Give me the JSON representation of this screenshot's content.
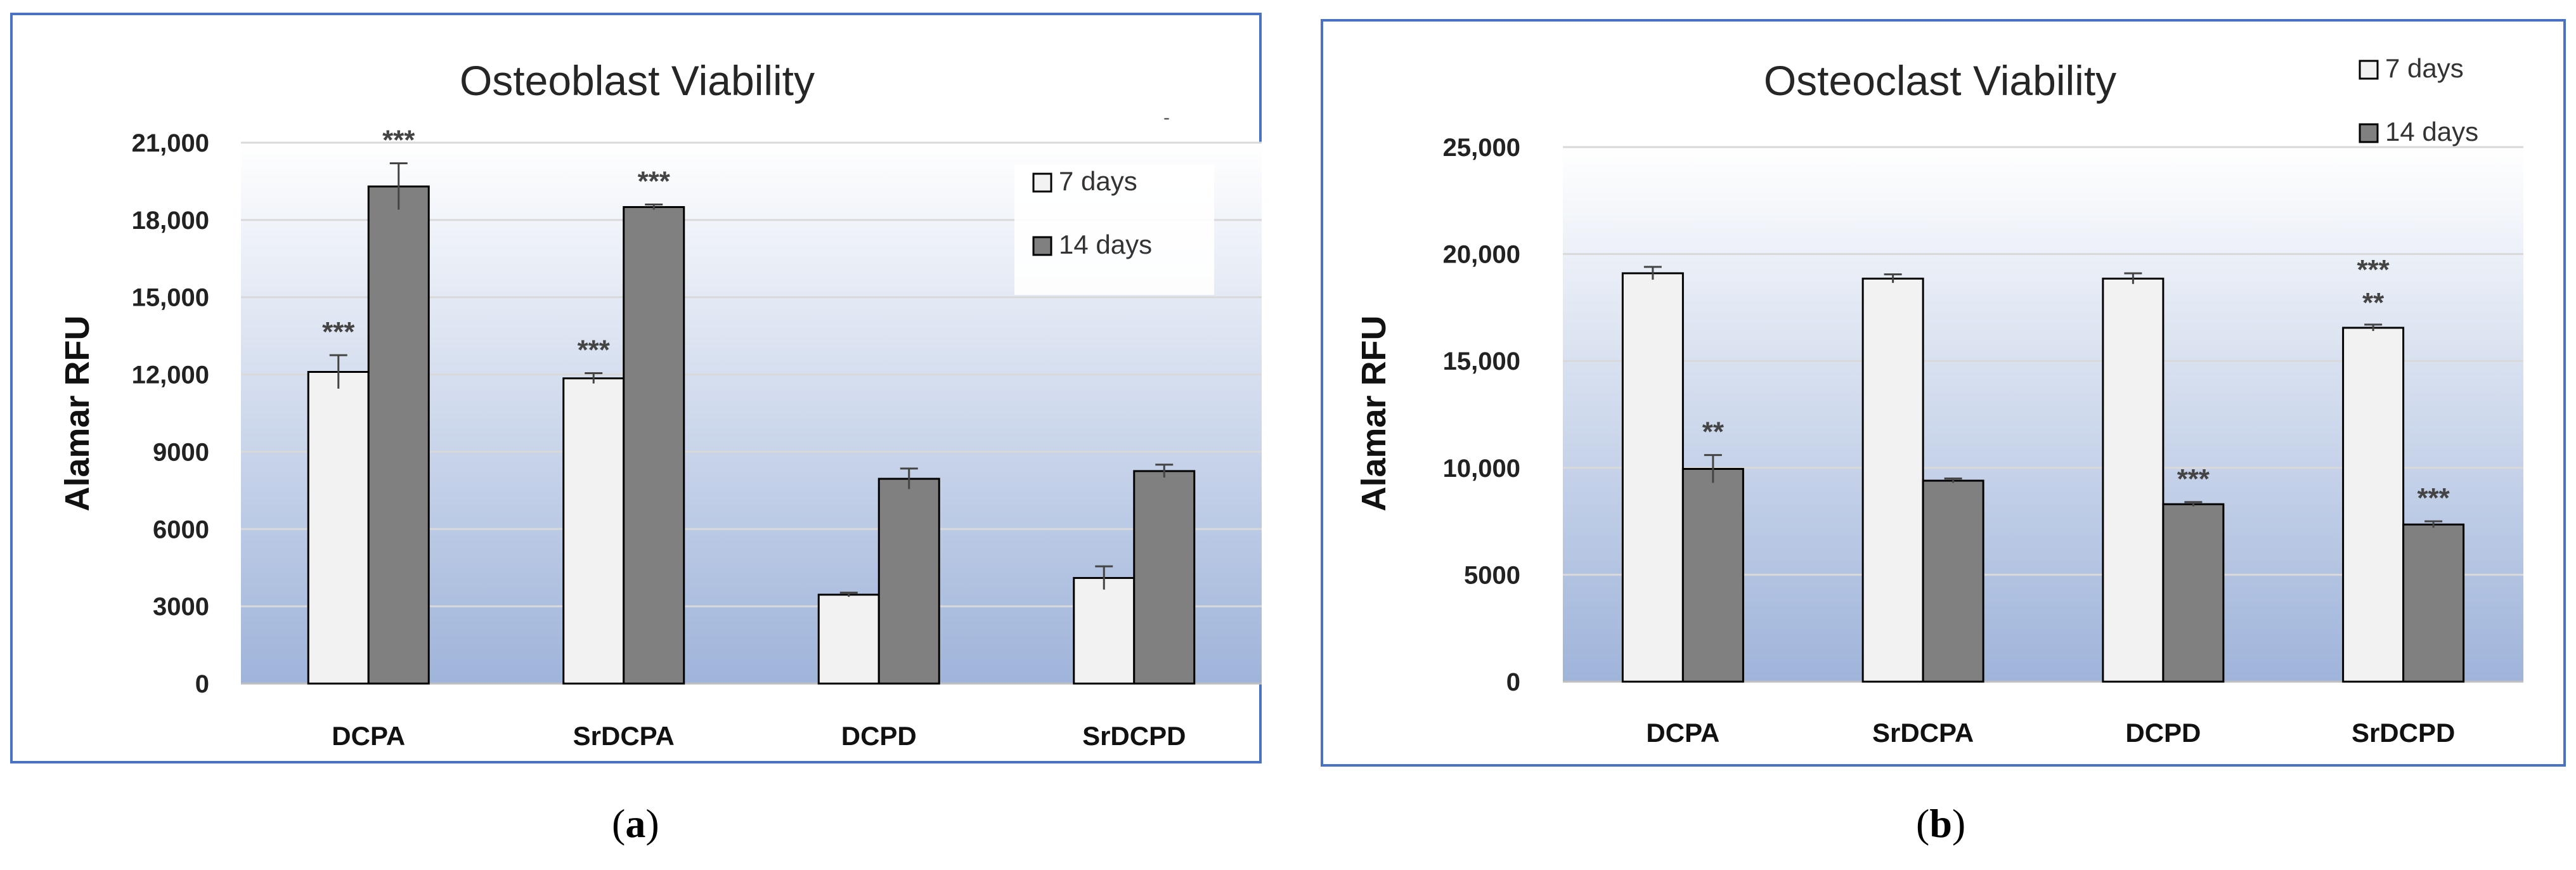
{
  "panels": [
    {
      "label_open": "(",
      "label_letter": "a",
      "label_close": ")"
    },
    {
      "label_open": "(",
      "label_letter": "b",
      "label_close": ")"
    }
  ],
  "colors": {
    "frame": "#4a72c4",
    "bar_7": "#f2f2f2",
    "bar_14": "#808080",
    "grid": "#d9d9d9",
    "plot_top": "#ffffff",
    "plot_bottom": "#9fb4da"
  },
  "chart_data": [
    {
      "type": "bar",
      "title": "Osteoblast Viability",
      "xlabel": "",
      "ylabel": "Alamar RFU",
      "ylim": [
        0,
        21000
      ],
      "yticks": [
        0,
        3000,
        6000,
        9000,
        12000,
        15000,
        18000,
        21000
      ],
      "ytick_labels": [
        "0",
        "3000",
        "6000",
        "9000",
        "12,000",
        "15,000",
        "18,000",
        "21,000"
      ],
      "grid": true,
      "legend_position": "top-right",
      "categories": [
        "DCPA",
        "SrDCPA",
        "DCPD",
        "SrDCPD"
      ],
      "series": [
        {
          "name": "7 days",
          "values": [
            12100,
            11850,
            3450,
            4100
          ],
          "errors": [
            650,
            200,
            80,
            450
          ],
          "annotations": [
            "***",
            "***",
            "",
            ""
          ]
        },
        {
          "name": "14 days",
          "values": [
            19300,
            18500,
            7950,
            8250
          ],
          "errors": [
            900,
            100,
            400,
            250
          ],
          "annotations": [
            "***",
            "***",
            "",
            ""
          ]
        }
      ],
      "stray_mark": "-"
    },
    {
      "type": "bar",
      "title": "Osteoclast Viability",
      "xlabel": "",
      "ylabel": "Alamar RFU",
      "ylim": [
        0,
        25000
      ],
      "yticks": [
        0,
        5000,
        10000,
        15000,
        20000,
        25000
      ],
      "ytick_labels": [
        "0",
        "5000",
        "10,000",
        "15,000",
        "20,000",
        "25,000"
      ],
      "grid": true,
      "legend_position": "top-right",
      "categories": [
        "DCPA",
        "SrDCPA",
        "DCPD",
        "SrDCPD"
      ],
      "series": [
        {
          "name": "7 days",
          "values": [
            19100,
            18850,
            18850,
            16550
          ],
          "errors": [
            300,
            200,
            250,
            150
          ],
          "annotations": [
            "",
            "",
            "",
            "***\n**"
          ]
        },
        {
          "name": "14 days",
          "values": [
            9950,
            9400,
            8300,
            7350
          ],
          "errors": [
            650,
            100,
            100,
            150
          ],
          "annotations": [
            "**",
            "",
            "***",
            "***"
          ]
        }
      ]
    }
  ]
}
